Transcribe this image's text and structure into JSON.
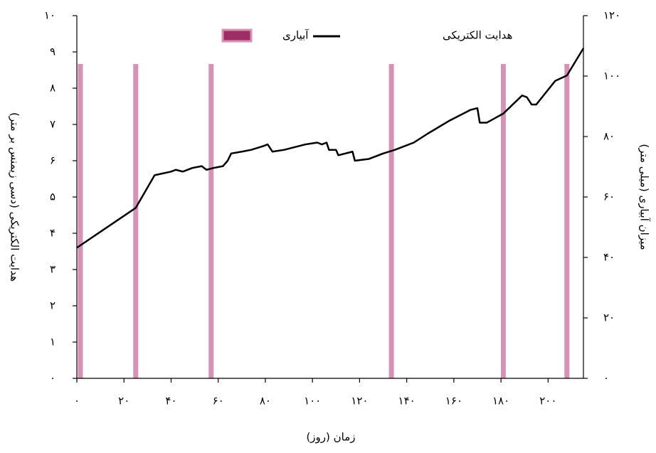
{
  "chart_data": {
    "type": "line",
    "x_label": "زمان (روز)",
    "y_label": "هدایت الکتریکی (دسی زیمنس بر متر)",
    "y2_label": "میزان آبیاری (میلی متر)",
    "xlim": [
      0,
      215
    ],
    "ylim": [
      0,
      10
    ],
    "y2lim": [
      0,
      120
    ],
    "xticks": [
      {
        "value": 0,
        "label": "۰"
      },
      {
        "value": 20,
        "label": "۲۰"
      },
      {
        "value": 40,
        "label": "۴۰"
      },
      {
        "value": 60,
        "label": "۶۰"
      },
      {
        "value": 80,
        "label": "۸۰"
      },
      {
        "value": 100,
        "label": "۱۰۰"
      },
      {
        "value": 120,
        "label": "۱۲۰"
      },
      {
        "value": 140,
        "label": "۱۴۰"
      },
      {
        "value": 160,
        "label": "۱۶۰"
      },
      {
        "value": 180,
        "label": "۱۸۰"
      },
      {
        "value": 200,
        "label": "۲۰۰"
      }
    ],
    "yticks": [
      {
        "value": 0,
        "label": "۰"
      },
      {
        "value": 1,
        "label": "۱"
      },
      {
        "value": 2,
        "label": "۲"
      },
      {
        "value": 3,
        "label": "۳"
      },
      {
        "value": 4,
        "label": "۴"
      },
      {
        "value": 5,
        "label": "۵"
      },
      {
        "value": 6,
        "label": "۶"
      },
      {
        "value": 7,
        "label": "۷"
      },
      {
        "value": 8,
        "label": "۸"
      },
      {
        "value": 9,
        "label": "۹"
      },
      {
        "value": 10,
        "label": "۱۰"
      }
    ],
    "y2ticks": [
      {
        "value": 0,
        "label": "۰"
      },
      {
        "value": 20,
        "label": "۲۰"
      },
      {
        "value": 40,
        "label": "۴۰"
      },
      {
        "value": 60,
        "label": "۶۰"
      },
      {
        "value": 80,
        "label": "۸۰"
      },
      {
        "value": 100,
        "label": "۱۰۰"
      },
      {
        "value": 120,
        "label": "۱۲۰"
      }
    ],
    "series": [
      {
        "name": "هدایت الکتریکی",
        "color": "#000000",
        "type": "line",
        "x": [
          0,
          25,
          33,
          40,
          42,
          45,
          49,
          53,
          55,
          58,
          62,
          64,
          65.5,
          70,
          74,
          79,
          81,
          83,
          88,
          97,
          102,
          104,
          106,
          107,
          110,
          111,
          117,
          118,
          124,
          130,
          135,
          143,
          149,
          158,
          167,
          170,
          171,
          174,
          181,
          189,
          191,
          193,
          195,
          203,
          208,
          215
        ],
        "values": [
          3.6,
          4.7,
          5.6,
          5.7,
          5.75,
          5.7,
          5.8,
          5.85,
          5.75,
          5.8,
          5.85,
          6.0,
          6.2,
          6.25,
          6.3,
          6.4,
          6.45,
          6.25,
          6.3,
          6.45,
          6.5,
          6.45,
          6.5,
          6.3,
          6.3,
          6.15,
          6.25,
          6.0,
          6.05,
          6.2,
          6.3,
          6.5,
          6.75,
          7.1,
          7.4,
          7.45,
          7.05,
          7.05,
          7.3,
          7.8,
          7.75,
          7.55,
          7.55,
          8.2,
          8.35,
          9.1
        ]
      },
      {
        "name": "آبیاری",
        "color": "#d592b4",
        "legend_color": "#9e2f66",
        "type": "bar",
        "axis": "y2",
        "x": [
          1.5,
          25,
          57,
          133.5,
          181,
          208
        ],
        "values": [
          104,
          104,
          104,
          104,
          104,
          104
        ]
      }
    ]
  }
}
